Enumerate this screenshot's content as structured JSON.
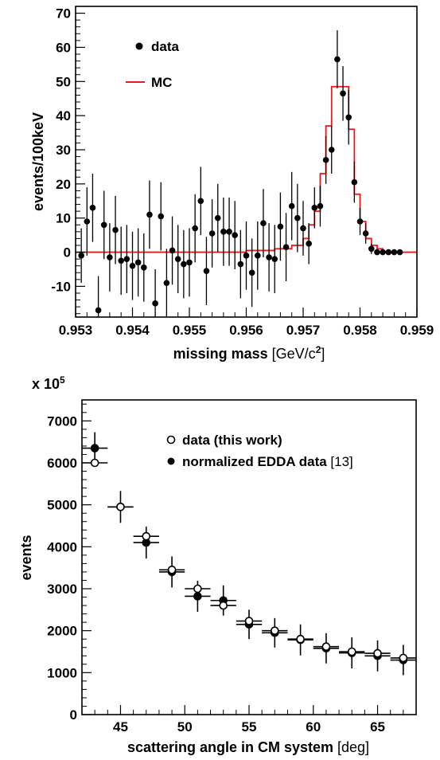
{
  "chart_data": [
    {
      "type": "scatter",
      "xlabel": "missing mass [GeV/c²]",
      "xlabel_main": "missing mass ",
      "xlabel_unit": "[GeV/c",
      "xlabel_sup": "2",
      "xlabel_close": "]",
      "ylabel": "events/100keV",
      "xlim": [
        0.953,
        0.959
      ],
      "ylim": [
        -19,
        72
      ],
      "x_ticks": [
        "0.953",
        "0.954",
        "0.955",
        "0.956",
        "0.957",
        "0.958",
        "0.959"
      ],
      "y_ticks": [
        "-10",
        "0",
        "10",
        "20",
        "30",
        "40",
        "50",
        "60",
        "70"
      ],
      "legend": [
        "data",
        "MC"
      ],
      "colors": {
        "data": "#000000",
        "MC": "#e8191b"
      },
      "series": [
        {
          "name": "data",
          "points": [
            [
              0.9531,
              -1,
              8
            ],
            [
              0.9532,
              9,
              10
            ],
            [
              0.9533,
              13,
              10
            ],
            [
              0.9534,
              -17,
              10
            ],
            [
              0.9535,
              8,
              10
            ],
            [
              0.9536,
              -1.5,
              10
            ],
            [
              0.9537,
              6.5,
              10
            ],
            [
              0.9538,
              -2.5,
              10
            ],
            [
              0.9539,
              -2,
              10
            ],
            [
              0.954,
              -4,
              10
            ],
            [
              0.9541,
              -3,
              10
            ],
            [
              0.9542,
              -4.5,
              10
            ],
            [
              0.9543,
              11,
              10
            ],
            [
              0.9544,
              -15,
              10
            ],
            [
              0.9545,
              10.5,
              10
            ],
            [
              0.9546,
              -9,
              10
            ],
            [
              0.9547,
              0.5,
              10
            ],
            [
              0.9548,
              -2,
              10
            ],
            [
              0.9549,
              -3.5,
              10
            ],
            [
              0.955,
              -3,
              10
            ],
            [
              0.9551,
              7,
              10
            ],
            [
              0.9552,
              15,
              10
            ],
            [
              0.9553,
              -5.5,
              10
            ],
            [
              0.9554,
              5.5,
              10
            ],
            [
              0.9555,
              10,
              10
            ],
            [
              0.9556,
              6,
              10
            ],
            [
              0.9557,
              6,
              10
            ],
            [
              0.9558,
              5,
              10
            ],
            [
              0.9559,
              -3.5,
              10
            ],
            [
              0.956,
              -1,
              10
            ],
            [
              0.9561,
              -6,
              10
            ],
            [
              0.9562,
              -1,
              10
            ],
            [
              0.9563,
              8.5,
              10
            ],
            [
              0.9564,
              -1.5,
              10
            ],
            [
              0.9565,
              -2,
              10
            ],
            [
              0.9566,
              7.5,
              10
            ],
            [
              0.9567,
              1.5,
              10
            ],
            [
              0.9568,
              13.5,
              10
            ],
            [
              0.9569,
              10,
              10
            ],
            [
              0.957,
              7,
              8
            ],
            [
              0.9571,
              2.5,
              6
            ],
            [
              0.9572,
              13,
              6
            ],
            [
              0.9573,
              13.5,
              6
            ],
            [
              0.9574,
              27,
              7
            ],
            [
              0.9575,
              30,
              7
            ],
            [
              0.9576,
              56.5,
              8.5
            ],
            [
              0.9577,
              46.5,
              8
            ],
            [
              0.9578,
              39.5,
              8
            ],
            [
              0.9579,
              20.5,
              6
            ],
            [
              0.958,
              9,
              4
            ],
            [
              0.9581,
              5.5,
              3
            ],
            [
              0.9582,
              1,
              1.5
            ],
            [
              0.9583,
              0,
              0.7
            ],
            [
              0.9584,
              0,
              0.5
            ],
            [
              0.9585,
              0,
              0.5
            ],
            [
              0.9586,
              0,
              0.5
            ],
            [
              0.9587,
              0,
              0.5
            ]
          ]
        },
        {
          "name": "MC",
          "bin_edges": [
            0.953,
            0.956,
            0.9565,
            0.9568,
            0.957,
            0.9571,
            0.9572,
            0.9573,
            0.9574,
            0.9575,
            0.9576,
            0.9578,
            0.9579,
            0.958,
            0.9581,
            0.9582,
            0.9583,
            0.9584,
            0.959
          ],
          "values": [
            0,
            0.5,
            1,
            2,
            4,
            8,
            12,
            23,
            37,
            48.5,
            48.5,
            36,
            17,
            9,
            4,
            2,
            1,
            0
          ]
        }
      ]
    },
    {
      "type": "scatter",
      "xlabel": "scattering angle in CM system [deg]",
      "xlabel_main": "scattering angle in CM system ",
      "xlabel_unit": "[deg]",
      "ylabel": "events",
      "scale_label": "x 10",
      "scale_exp": "5",
      "xlim": [
        42,
        68
      ],
      "ylim": [
        0,
        7500
      ],
      "x_ticks": [
        "45",
        "50",
        "55",
        "60",
        "65"
      ],
      "y_ticks": [
        "0",
        "1000",
        "2000",
        "3000",
        "4000",
        "5000",
        "6000",
        "7000"
      ],
      "legend": [
        "data (this work)",
        "normalized EDDA data [13]"
      ],
      "legend_main": [
        "data (this work)",
        "normalized EDDA data "
      ],
      "legend_ref": [
        "",
        "[13]"
      ],
      "series": [
        {
          "name": "data (this work)",
          "marker": "open-circle",
          "x": [
            43,
            45,
            47,
            49,
            51,
            53,
            55,
            57,
            59,
            61,
            63,
            65,
            67
          ],
          "y": [
            6000,
            4950,
            4250,
            3450,
            3000,
            2600,
            2230,
            2000,
            1800,
            1620,
            1500,
            1460,
            1350
          ],
          "xerr": 1,
          "yerr": [
            40,
            40,
            50,
            50,
            50,
            50,
            50,
            50,
            50,
            50,
            50,
            50,
            50
          ]
        },
        {
          "name": "normalized EDDA data [13]",
          "marker": "filled-circle",
          "x": [
            43,
            45,
            47,
            49,
            51,
            53,
            55,
            57,
            59,
            61,
            63,
            65,
            67
          ],
          "y": [
            6350,
            4950,
            4100,
            3400,
            2820,
            2720,
            2150,
            1950,
            1780,
            1580,
            1470,
            1400,
            1300
          ],
          "xerr": 1,
          "yerr": [
            380,
            380,
            380,
            370,
            370,
            360,
            350,
            350,
            370,
            360,
            370,
            370,
            360
          ]
        }
      ]
    }
  ]
}
